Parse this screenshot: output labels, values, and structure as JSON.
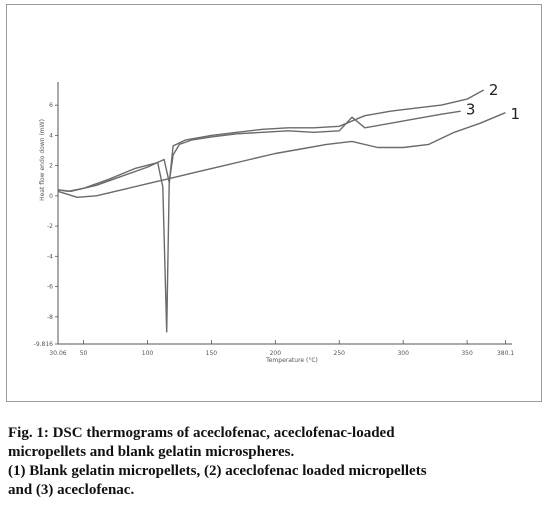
{
  "chart_data": {
    "type": "line",
    "ylabel": "Heat flow endo down (mW)",
    "xlabel": "Temperature (°C)",
    "x_ticks": [
      30.0,
      50,
      100,
      150,
      200,
      250,
      300,
      350,
      380.1
    ],
    "x_tick_labels": [
      "30.06",
      "50",
      "100",
      "150",
      "200",
      "250",
      "300",
      "350",
      "380.1"
    ],
    "y_ticks": [
      6,
      4,
      2,
      0,
      -2,
      -4,
      -6,
      -8,
      -9.8
    ],
    "y_tick_labels": [
      "6",
      "4",
      "2",
      "0",
      "-2",
      "-4",
      "-6",
      "-8",
      "-9.816"
    ],
    "xlim": [
      30,
      382
    ],
    "ylim": [
      -9.8,
      7
    ],
    "grid": false,
    "legend": "none",
    "series": [
      {
        "name": "1",
        "x": [
          30,
          45,
          60,
          80,
          100,
          120,
          140,
          160,
          180,
          200,
          220,
          240,
          260,
          280,
          300,
          320,
          340,
          360,
          380
        ],
        "y": [
          0.3,
          -0.1,
          0.0,
          0.4,
          0.8,
          1.2,
          1.6,
          2.0,
          2.4,
          2.8,
          3.1,
          3.4,
          3.6,
          3.2,
          3.2,
          3.4,
          4.2,
          4.8,
          5.5
        ]
      },
      {
        "name": "2",
        "x": [
          30,
          38,
          50,
          70,
          90,
          108,
          112,
          115,
          117,
          120,
          130,
          150,
          170,
          190,
          210,
          230,
          250,
          270,
          290,
          310,
          330,
          350,
          363
        ],
        "y": [
          0.4,
          0.3,
          0.5,
          1.1,
          1.8,
          2.2,
          0.6,
          -9.0,
          0.8,
          3.3,
          3.7,
          4.0,
          4.2,
          4.4,
          4.5,
          4.5,
          4.6,
          5.3,
          5.6,
          5.8,
          6.0,
          6.4,
          7.0
        ]
      },
      {
        "name": "3",
        "x": [
          30,
          40,
          60,
          80,
          100,
          113,
          117,
          120,
          125,
          135,
          150,
          170,
          190,
          210,
          230,
          250,
          260,
          270,
          290,
          310,
          330,
          345
        ],
        "y": [
          0.4,
          0.3,
          0.7,
          1.3,
          1.9,
          2.4,
          0.9,
          2.7,
          3.4,
          3.7,
          3.9,
          4.1,
          4.2,
          4.3,
          4.2,
          4.3,
          5.2,
          4.5,
          4.8,
          5.1,
          5.4,
          5.6
        ]
      }
    ],
    "annotations": [
      {
        "text": "1",
        "x": 384,
        "y": 5.4
      },
      {
        "text": "2",
        "x": 367,
        "y": 7.0
      },
      {
        "text": "3",
        "x": 349,
        "y": 5.7
      }
    ]
  },
  "caption": {
    "line1": "Fig. 1: DSC thermograms of aceclofenac, aceclofenac-loaded",
    "line2": "micropellets and blank gelatin microspheres.",
    "line3": "(1) Blank gelatin micropellets, (2) aceclofenac loaded micropellets",
    "line4": "and (3) aceclofenac."
  },
  "colors": {
    "curve": "#6a6a6a",
    "axis": "#555555",
    "frame": "#9a9a9a"
  }
}
